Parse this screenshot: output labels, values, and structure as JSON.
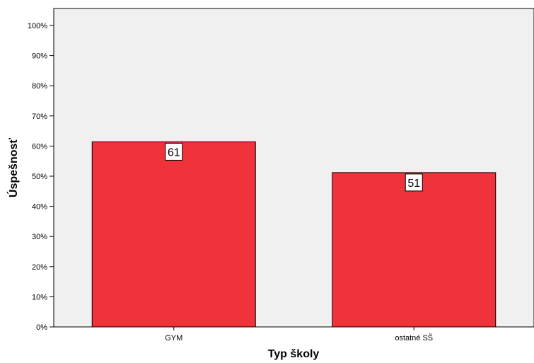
{
  "chart_data": {
    "type": "bar",
    "title": "",
    "xlabel": "Typ školy",
    "ylabel": "Úspešnosť",
    "categories": [
      "GYM",
      "ostatné SŠ"
    ],
    "values": [
      61.4,
      51.2
    ],
    "data_labels": [
      "61",
      "51"
    ],
    "ylim": [
      0,
      100
    ],
    "yticks": [
      0,
      10,
      20,
      30,
      40,
      50,
      60,
      70,
      80,
      90,
      100
    ],
    "ytick_labels": [
      "0%",
      "10%",
      "20%",
      "30%",
      "40%",
      "50%",
      "60%",
      "70%",
      "80%",
      "90%",
      "100%"
    ],
    "grid": false,
    "legend": "none",
    "colors": {
      "bar_fill": "#f0323a",
      "plot_background": "#f0f0f0",
      "label_box": "#ffffff"
    }
  }
}
